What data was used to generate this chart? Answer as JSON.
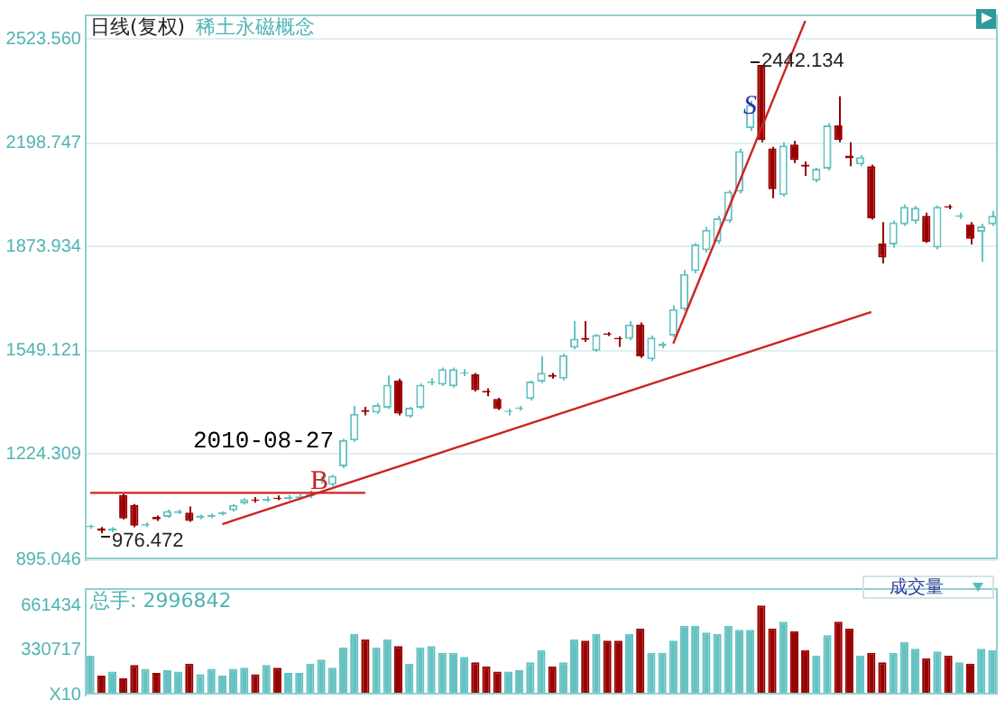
{
  "chart_data": [
    {
      "type": "candlestick",
      "title": "日线(复权)",
      "subtitle": "稀土永磁概念",
      "categories": [
        null,
        null,
        null,
        null,
        null,
        null,
        null,
        null,
        null,
        null,
        null,
        null,
        null,
        null,
        null,
        null,
        null,
        null,
        null,
        null,
        null,
        null,
        null,
        null,
        null,
        null,
        null,
        null,
        null,
        null,
        null,
        null,
        null,
        null,
        null,
        null,
        null,
        null,
        null,
        null,
        null,
        null,
        null,
        null,
        null,
        null,
        null,
        null,
        null,
        null,
        null,
        null,
        null,
        null,
        null,
        null,
        null,
        null,
        null,
        null,
        null,
        null,
        null,
        null,
        null,
        null,
        null,
        null,
        null,
        null,
        null,
        null,
        null,
        null,
        null,
        null,
        null,
        null,
        null,
        null,
        null,
        null,
        null
      ],
      "ohlc": [
        [
          995,
          1003,
          990,
          1000
        ],
        [
          992,
          996,
          976.472,
          984
        ],
        [
          984,
          995,
          980,
          992
        ],
        [
          1096,
          1100,
          1020,
          1023
        ],
        [
          1065,
          1068,
          995,
          1000
        ],
        [
          1000,
          1010,
          996,
          1006
        ],
        [
          1028,
          1032,
          1015,
          1020
        ],
        [
          1028,
          1050,
          1025,
          1046
        ],
        [
          1040,
          1050,
          1036,
          1046
        ],
        [
          1041,
          1060,
          1012,
          1015
        ],
        [
          1025,
          1035,
          1020,
          1032
        ],
        [
          1028,
          1038,
          1024,
          1034
        ],
        [
          1036,
          1045,
          1032,
          1042
        ],
        [
          1048,
          1068,
          1045,
          1065
        ],
        [
          1070,
          1086,
          1066,
          1083
        ],
        [
          1082,
          1090,
          1072,
          1078
        ],
        [
          1078,
          1092,
          1075,
          1084
        ],
        [
          1088,
          1095,
          1080,
          1084
        ],
        [
          1084,
          1096,
          1080,
          1090
        ],
        [
          1086,
          1098,
          1082,
          1092
        ],
        [
          1092,
          1110,
          1086,
          1100
        ],
        [
          1140,
          1155,
          1132,
          1146
        ],
        [
          1128,
          1160,
          1124,
          1156
        ],
        [
          1186,
          1272,
          1180,
          1268
        ],
        [
          1267,
          1375,
          1262,
          1350
        ],
        [
          1362,
          1372,
          1345,
          1356
        ],
        [
          1354,
          1384,
          1350,
          1378
        ],
        [
          1369,
          1470,
          1365,
          1441
        ],
        [
          1455,
          1460,
          1345,
          1351
        ],
        [
          1342,
          1372,
          1338,
          1369
        ],
        [
          1369,
          1445,
          1365,
          1441
        ],
        [
          1446,
          1462,
          1440,
          1451
        ],
        [
          1441,
          1495,
          1438,
          1490
        ],
        [
          1436,
          1495,
          1432,
          1490
        ],
        [
          1476,
          1490,
          1468,
          1480
        ],
        [
          1474,
          1478,
          1420,
          1424
        ],
        [
          1422,
          1430,
          1405,
          1417
        ],
        [
          1397,
          1400,
          1362,
          1366
        ],
        [
          1356,
          1366,
          1345,
          1360
        ],
        [
          1366,
          1375,
          1360,
          1370
        ],
        [
          1397,
          1455,
          1392,
          1451
        ],
        [
          1451,
          1530,
          1446,
          1479
        ],
        [
          1472,
          1478,
          1460,
          1466
        ],
        [
          1460,
          1538,
          1455,
          1534
        ],
        [
          1557,
          1640,
          1552,
          1585
        ],
        [
          1588,
          1640,
          1575,
          1582
        ],
        [
          1548,
          1600,
          1544,
          1597
        ],
        [
          1602,
          1606,
          1594,
          1598
        ],
        [
          1588,
          1592,
          1560,
          1584
        ],
        [
          1585,
          1640,
          1580,
          1630
        ],
        [
          1630,
          1636,
          1525,
          1530
        ],
        [
          1521,
          1595,
          1515,
          1589
        ],
        [
          1562,
          1575,
          1555,
          1570
        ],
        [
          1595,
          1690,
          1590,
          1678
        ],
        [
          1678,
          1800,
          1672,
          1788
        ],
        [
          1797,
          1885,
          1790,
          1880
        ],
        [
          1862,
          1935,
          1855,
          1926
        ],
        [
          1889,
          1970,
          1882,
          1962
        ],
        [
          1953,
          2050,
          1948,
          2045
        ],
        [
          2045,
          2180,
          2040,
          2172
        ],
        [
          2244,
          2330,
          2235,
          2317
        ],
        [
          2442.134,
          2442.134,
          2200,
          2207
        ],
        [
          2181,
          2186,
          2025,
          2053
        ],
        [
          2035,
          2200,
          2030,
          2190
        ],
        [
          2193,
          2205,
          2135,
          2144
        ],
        [
          2130,
          2140,
          2095,
          2124
        ],
        [
          2080,
          2120,
          2075,
          2117
        ],
        [
          2117,
          2260,
          2112,
          2253
        ],
        [
          2253,
          2344,
          2200,
          2207
        ],
        [
          2158,
          2200,
          2125,
          2150
        ],
        [
          2131,
          2160,
          2125,
          2153
        ],
        [
          2125,
          2130,
          1958,
          1962
        ],
        [
          1883,
          1950,
          1821,
          1839
        ],
        [
          1880,
          1955,
          1870,
          1949
        ],
        [
          1943,
          2005,
          1938,
          1998
        ],
        [
          1953,
          2000,
          1945,
          1995
        ],
        [
          1970,
          1980,
          1885,
          1889
        ],
        [
          1870,
          2002,
          1865,
          1998
        ],
        [
          2000,
          2005,
          1990,
          1996
        ],
        [
          1966,
          1980,
          1960,
          1972
        ],
        [
          1943,
          1950,
          1880,
          1898
        ],
        [
          1920,
          1945,
          1826,
          1937
        ],
        [
          1943,
          1985,
          1938,
          1970
        ]
      ],
      "colors": [
        "#66c2c2",
        "#990000",
        "#66c2c2",
        "#990000",
        "#990000",
        "#66c2c2",
        "#990000",
        "#66c2c2",
        "#66c2c2",
        "#990000",
        "#66c2c2",
        "#66c2c2",
        "#66c2c2",
        "#66c2c2",
        "#66c2c2",
        "#990000",
        "#66c2c2",
        "#990000",
        "#66c2c2",
        "#66c2c2",
        "#66c2c2",
        "#66c2c2",
        "#66c2c2",
        "#66c2c2",
        "#66c2c2",
        "#990000",
        "#66c2c2",
        "#66c2c2",
        "#990000",
        "#66c2c2",
        "#66c2c2",
        "#66c2c2",
        "#66c2c2",
        "#66c2c2",
        "#66c2c2",
        "#990000",
        "#990000",
        "#990000",
        "#66c2c2",
        "#66c2c2",
        "#66c2c2",
        "#66c2c2",
        "#990000",
        "#66c2c2",
        "#66c2c2",
        "#990000",
        "#66c2c2",
        "#990000",
        "#990000",
        "#66c2c2",
        "#990000",
        "#66c2c2",
        "#66c2c2",
        "#66c2c2",
        "#66c2c2",
        "#66c2c2",
        "#66c2c2",
        "#66c2c2",
        "#66c2c2",
        "#66c2c2",
        "#66c2c2",
        "#990000",
        "#990000",
        "#66c2c2",
        "#990000",
        "#990000",
        "#66c2c2",
        "#66c2c2",
        "#990000",
        "#990000",
        "#66c2c2",
        "#990000",
        "#990000",
        "#66c2c2",
        "#66c2c2",
        "#66c2c2",
        "#990000",
        "#66c2c2",
        "#990000",
        "#66c2c2",
        "#990000",
        "#66c2c2",
        "#66c2c2"
      ],
      "series": [
        {
          "type": "line",
          "color": "#cc2222",
          "values": [
            1103,
            null,
            null,
            null,
            null,
            null,
            null,
            null,
            null,
            null,
            null,
            null,
            null,
            null,
            null,
            null,
            null,
            null,
            null,
            null,
            null,
            null,
            null,
            null,
            null,
            1103,
            null,
            null,
            null,
            null,
            null,
            null,
            null,
            null,
            null,
            null,
            null,
            null,
            null,
            null,
            null,
            null,
            null,
            null,
            null,
            null,
            null,
            null,
            null,
            null,
            null,
            null,
            null,
            null,
            null,
            null,
            null,
            null,
            null,
            null,
            null,
            null,
            null,
            null,
            null,
            null,
            null,
            null,
            null,
            null,
            null,
            null,
            null,
            null,
            null,
            null,
            null,
            null,
            null,
            null,
            null,
            null,
            null
          ]
        },
        {
          "type": "line",
          "color": "#cc2222",
          "values": [
            null,
            null,
            null,
            null,
            null,
            null,
            null,
            null,
            null,
            null,
            null,
            null,
            1005,
            null,
            null,
            null,
            null,
            null,
            null,
            null,
            null,
            null,
            null,
            null,
            null,
            null,
            null,
            null,
            null,
            null,
            null,
            null,
            null,
            null,
            null,
            null,
            null,
            null,
            null,
            null,
            null,
            null,
            null,
            null,
            null,
            null,
            null,
            null,
            null,
            null,
            null,
            null,
            null,
            null,
            null,
            null,
            null,
            null,
            null,
            null,
            null,
            null,
            null,
            null,
            null,
            null,
            null,
            null,
            null,
            null,
            null,
            1669,
            null,
            null,
            null,
            null,
            null,
            null,
            null,
            null,
            null,
            null,
            null
          ]
        },
        {
          "type": "line",
          "color": "#cc2222",
          "values": [
            null,
            null,
            null,
            null,
            null,
            null,
            null,
            null,
            null,
            null,
            null,
            null,
            null,
            null,
            null,
            null,
            null,
            null,
            null,
            null,
            null,
            null,
            null,
            null,
            null,
            null,
            null,
            null,
            null,
            null,
            null,
            null,
            null,
            null,
            null,
            null,
            null,
            null,
            null,
            null,
            null,
            null,
            null,
            null,
            null,
            null,
            null,
            null,
            null,
            null,
            null,
            null,
            null,
            1570,
            null,
            null,
            null,
            null,
            null,
            null,
            null,
            null,
            null,
            null,
            null,
            2580,
            null,
            null,
            null,
            null,
            null,
            null,
            null,
            null,
            null,
            null,
            null,
            null,
            null,
            null,
            null,
            null,
            null
          ]
        }
      ],
      "ylim": [
        895.046,
        2600
      ],
      "yticks": [
        {
          "value": 2523.56,
          "label": "2523.560"
        },
        2198.747,
        1873.934,
        1549.121,
        1224.309,
        895.046
      ],
      "grid": "y",
      "tick_labels": "y",
      "line_style": "solid",
      "annotations": [
        "2010-08-27",
        "B",
        "S",
        "976.472",
        "2442.134"
      ]
    },
    {
      "type": "bar",
      "title": "总手: 2996842",
      "categories": [
        null,
        null,
        null,
        null,
        null,
        null,
        null,
        null,
        null,
        null,
        null,
        null,
        null,
        null,
        null,
        null,
        null,
        null,
        null,
        null,
        null,
        null,
        null,
        null,
        null,
        null,
        null,
        null,
        null,
        null,
        null,
        null,
        null,
        null,
        null,
        null,
        null,
        null,
        null,
        null,
        null,
        null,
        null,
        null,
        null,
        null,
        null,
        null,
        null,
        null,
        null,
        null,
        null,
        null,
        null,
        null,
        null,
        null,
        null,
        null,
        null,
        null,
        null,
        null,
        null,
        null,
        null,
        null,
        null,
        null,
        null,
        null,
        null,
        null,
        null,
        null,
        null,
        null,
        null,
        null,
        null,
        null,
        null
      ],
      "values": [
        290000,
        140000,
        170000,
        120000,
        220000,
        190000,
        160000,
        180000,
        170000,
        230000,
        150000,
        190000,
        140000,
        190000,
        200000,
        150000,
        220000,
        200000,
        160000,
        160000,
        230000,
        260000,
        200000,
        350000,
        450000,
        410000,
        350000,
        410000,
        360000,
        230000,
        350000,
        360000,
        310000,
        310000,
        280000,
        240000,
        210000,
        170000,
        170000,
        180000,
        240000,
        330000,
        210000,
        240000,
        410000,
        400000,
        450000,
        400000,
        400000,
        450000,
        490000,
        310000,
        310000,
        400000,
        510000,
        510000,
        460000,
        450000,
        510000,
        480000,
        480000,
        661434,
        490000,
        540000,
        470000,
        330000,
        290000,
        440000,
        540000,
        490000,
        290000,
        310000,
        240000,
        310000,
        390000,
        340000,
        270000,
        320000,
        290000,
        240000,
        230000,
        340000,
        330000
      ],
      "colors": [
        "#66c2c2",
        "#990000",
        "#66c2c2",
        "#990000",
        "#990000",
        "#66c2c2",
        "#990000",
        "#66c2c2",
        "#66c2c2",
        "#990000",
        "#66c2c2",
        "#66c2c2",
        "#66c2c2",
        "#66c2c2",
        "#66c2c2",
        "#990000",
        "#66c2c2",
        "#990000",
        "#66c2c2",
        "#66c2c2",
        "#66c2c2",
        "#66c2c2",
        "#66c2c2",
        "#66c2c2",
        "#66c2c2",
        "#990000",
        "#66c2c2",
        "#66c2c2",
        "#990000",
        "#66c2c2",
        "#66c2c2",
        "#66c2c2",
        "#66c2c2",
        "#66c2c2",
        "#66c2c2",
        "#990000",
        "#990000",
        "#990000",
        "#66c2c2",
        "#66c2c2",
        "#66c2c2",
        "#66c2c2",
        "#990000",
        "#66c2c2",
        "#66c2c2",
        "#990000",
        "#66c2c2",
        "#990000",
        "#990000",
        "#66c2c2",
        "#990000",
        "#66c2c2",
        "#66c2c2",
        "#66c2c2",
        "#66c2c2",
        "#66c2c2",
        "#66c2c2",
        "#66c2c2",
        "#66c2c2",
        "#66c2c2",
        "#66c2c2",
        "#990000",
        "#990000",
        "#66c2c2",
        "#990000",
        "#990000",
        "#66c2c2",
        "#66c2c2",
        "#990000",
        "#990000",
        "#66c2c2",
        "#990000",
        "#990000",
        "#66c2c2",
        "#66c2c2",
        "#66c2c2",
        "#990000",
        "#66c2c2",
        "#990000",
        "#66c2c2",
        "#990000",
        "#66c2c2",
        "#66c2c2"
      ],
      "ylim": [
        0,
        790000
      ],
      "yticks": [
        661434,
        330717,
        {
          "value": 0,
          "label": "X10"
        }
      ],
      "tick_labels": "y",
      "annotations": [
        "成交量"
      ]
    }
  ]
}
